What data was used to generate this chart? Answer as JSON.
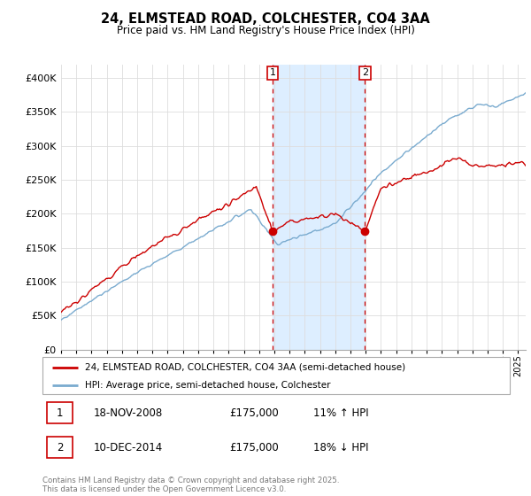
{
  "title": "24, ELMSTEAD ROAD, COLCHESTER, CO4 3AA",
  "subtitle": "Price paid vs. HM Land Registry's House Price Index (HPI)",
  "ylim": [
    0,
    420000
  ],
  "xlim_start": 1995.0,
  "xlim_end": 2025.5,
  "marker1_x": 2008.88,
  "marker1_y": 175000,
  "marker2_x": 2014.94,
  "marker2_y": 175000,
  "marker1_label": "1",
  "marker2_label": "2",
  "shade_x1": 2008.88,
  "shade_x2": 2014.94,
  "legend_line1": "24, ELMSTEAD ROAD, COLCHESTER, CO4 3AA (semi-detached house)",
  "legend_line2": "HPI: Average price, semi-detached house, Colchester",
  "table_row1": [
    "1",
    "18-NOV-2008",
    "£175,000",
    "11% ↑ HPI"
  ],
  "table_row2": [
    "2",
    "10-DEC-2014",
    "£175,000",
    "18% ↓ HPI"
  ],
  "footer": "Contains HM Land Registry data © Crown copyright and database right 2025.\nThis data is licensed under the Open Government Licence v3.0.",
  "line_color_red": "#cc0000",
  "line_color_blue": "#7aabcf",
  "shade_color": "#ddeeff",
  "marker_box_color": "#cc0000",
  "grid_color": "#dddddd",
  "bg_color": "#ffffff"
}
